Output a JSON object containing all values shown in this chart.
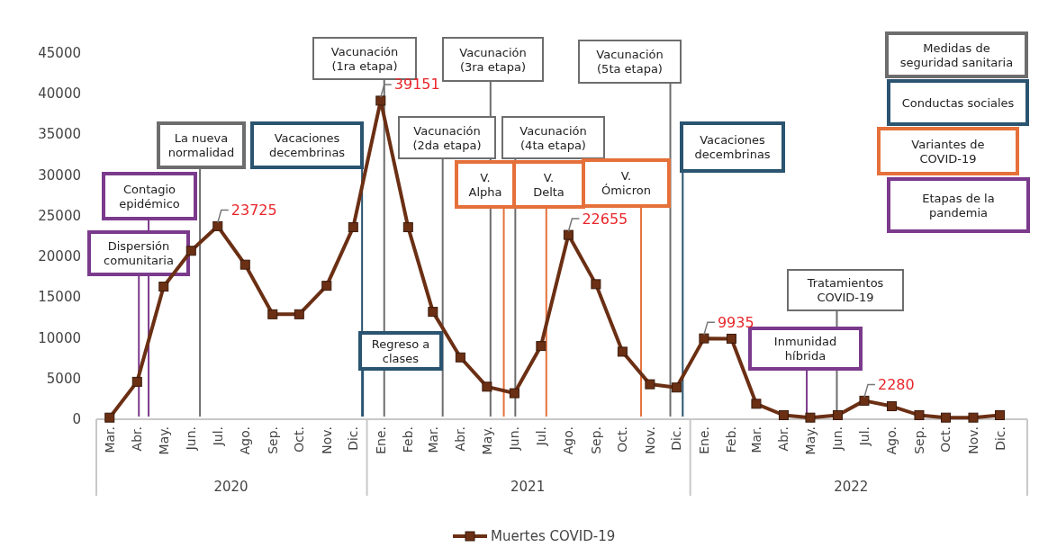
{
  "chart_data": {
    "type": "line",
    "x": [
      "2020-03",
      "2020-04",
      "2020-05",
      "2020-06",
      "2020-07",
      "2020-08",
      "2020-09",
      "2020-10",
      "2020-11",
      "2020-12",
      "2021-01",
      "2021-02",
      "2021-03",
      "2021-04",
      "2021-05",
      "2021-06",
      "2021-07",
      "2021-08",
      "2021-09",
      "2021-10",
      "2021-11",
      "2021-12",
      "2022-01",
      "2022-02",
      "2022-03",
      "2022-04",
      "2022-05",
      "2022-06",
      "2022-07",
      "2022-08",
      "2022-09",
      "2022-10",
      "2022-11",
      "2022-12"
    ],
    "series": [
      {
        "name": "Muertes COVID-19",
        "color": "#6b2f14",
        "values": [
          200,
          4600,
          16300,
          20700,
          23725,
          19000,
          12900,
          12900,
          16400,
          23600,
          39151,
          23600,
          13200,
          7600,
          4000,
          3200,
          9000,
          22655,
          16600,
          8300,
          4300,
          3900,
          9935,
          9900,
          1900,
          500,
          200,
          500,
          2280,
          1600,
          500,
          200,
          200,
          500
        ],
        "value_labels": [
          null,
          null,
          null,
          null,
          "23725",
          null,
          null,
          null,
          null,
          null,
          "39151",
          null,
          null,
          null,
          null,
          null,
          null,
          "22655",
          null,
          null,
          null,
          null,
          "9935",
          null,
          null,
          null,
          null,
          null,
          "2280",
          null,
          null,
          null,
          null,
          null
        ]
      }
    ],
    "marker": "square",
    "line_style": "solid",
    "legend": "bottom",
    "grid": false,
    "xlim": [
      "2020-02-15",
      "2023-01-01"
    ],
    "xticks": [
      {
        "value": "2020-03",
        "label": "Mar."
      },
      {
        "value": "2020-04",
        "label": "Abr."
      },
      {
        "value": "2020-05",
        "label": "May."
      },
      {
        "value": "2020-06",
        "label": "Jun."
      },
      {
        "value": "2020-07",
        "label": "Jul."
      },
      {
        "value": "2020-08",
        "label": "Ago."
      },
      {
        "value": "2020-09",
        "label": "Sep."
      },
      {
        "value": "2020-10",
        "label": "Oct."
      },
      {
        "value": "2020-11",
        "label": "Nov."
      },
      {
        "value": "2020-12",
        "label": "Dic."
      },
      {
        "value": "2021-01",
        "label": "Ene."
      },
      {
        "value": "2021-02",
        "label": "Feb."
      },
      {
        "value": "2021-03",
        "label": "Mar."
      },
      {
        "value": "2021-04",
        "label": "Abr."
      },
      {
        "value": "2021-05",
        "label": "May."
      },
      {
        "value": "2021-06",
        "label": "Jun."
      },
      {
        "value": "2021-07",
        "label": "Jul."
      },
      {
        "value": "2021-08",
        "label": "Ago."
      },
      {
        "value": "2021-09",
        "label": "Sep."
      },
      {
        "value": "2021-10",
        "label": "Oct."
      },
      {
        "value": "2021-11",
        "label": "Nov."
      },
      {
        "value": "2021-12",
        "label": "Dic."
      },
      {
        "value": "2022-01",
        "label": "Ene."
      },
      {
        "value": "2022-02",
        "label": "Feb."
      },
      {
        "value": "2022-03",
        "label": "Mar."
      },
      {
        "value": "2022-04",
        "label": "Abr."
      },
      {
        "value": "2022-05",
        "label": "May."
      },
      {
        "value": "2022-06",
        "label": "Jun."
      },
      {
        "value": "2022-07",
        "label": "Jul."
      },
      {
        "value": "2022-08",
        "label": "Ago."
      },
      {
        "value": "2022-09",
        "label": "Sep."
      },
      {
        "value": "2022-10",
        "label": "Oct."
      },
      {
        "value": "2022-11",
        "label": "Nov."
      },
      {
        "value": "2022-12",
        "label": "Dic."
      }
    ],
    "x2lim": [
      "2020-02-15",
      "2023-01-01"
    ],
    "x2ticks": [
      {
        "value": "2020-07-16",
        "label": "2020"
      },
      {
        "value": "2021-06-16",
        "label": "2021"
      },
      {
        "value": "2022-06-16",
        "label": "2022"
      }
    ],
    "ylim": [
      0,
      45000
    ],
    "yticks": [
      0,
      5000,
      10000,
      15000,
      20000,
      25000,
      30000,
      35000,
      40000,
      45000
    ],
    "ref_lines": [
      {
        "axis": "x",
        "value": "2020-04-03",
        "label": "Dispersión comunitaria",
        "color": "#7b3a8c"
      },
      {
        "axis": "x",
        "value": "2020-04-14",
        "label": "Contagio epidémico",
        "color": "#7b3a8c"
      },
      {
        "axis": "x",
        "value": "2020-06-11",
        "label": "La nueva normalidad",
        "color": "#6d6d6d"
      },
      {
        "axis": "x",
        "value": "2020-12-11",
        "label": "Vacaciones decembrinas",
        "color": "#2a5470"
      },
      {
        "axis": "x",
        "value": "2020-12-12",
        "label": "Regreso a clases",
        "color": "#2a5470"
      },
      {
        "axis": "x",
        "value": "2021-01-05",
        "label": "Vacunación (1ra etapa)",
        "color": "#6d6d6d"
      },
      {
        "axis": "x",
        "value": "2021-03-12",
        "label": "Vacunación (2da etapa)",
        "color": "#6d6d6d"
      },
      {
        "axis": "x",
        "value": "2021-05-05",
        "label": "Vacunación (3ra etapa)",
        "color": "#6d6d6d"
      },
      {
        "axis": "x",
        "value": "2021-05-20",
        "label": "V. Alpha",
        "color": "#e5703a"
      },
      {
        "axis": "x",
        "value": "2021-06-02",
        "label": "Vacunación (4ta etapa)",
        "color": "#6d6d6d"
      },
      {
        "axis": "x",
        "value": "2021-07-07",
        "label": "V. Delta",
        "color": "#e5703a"
      },
      {
        "axis": "x",
        "value": "2021-10-22",
        "label": "V. Ómicron",
        "color": "#e5703a"
      },
      {
        "axis": "x",
        "value": "2021-11-24",
        "label": "Vacunación (5ta etapa)",
        "color": "#6d6d6d"
      },
      {
        "axis": "x",
        "value": "2021-12-08",
        "label": "Vacaciones decembrinas",
        "color": "#2a5470"
      },
      {
        "axis": "x",
        "value": "2022-05-31",
        "label": "Tratamientos COVID-19",
        "color": "#6d6d6d"
      },
      {
        "axis": "x",
        "value": "2022-04-27",
        "label": "Inmunidad híbrida",
        "color": "#7b3a8c"
      }
    ],
    "annotations": [
      "Medidas de seguridad sanitaria",
      "Conductas sociales",
      "Variantes de COVID-19",
      "Etapas de la pandemia"
    ]
  }
}
